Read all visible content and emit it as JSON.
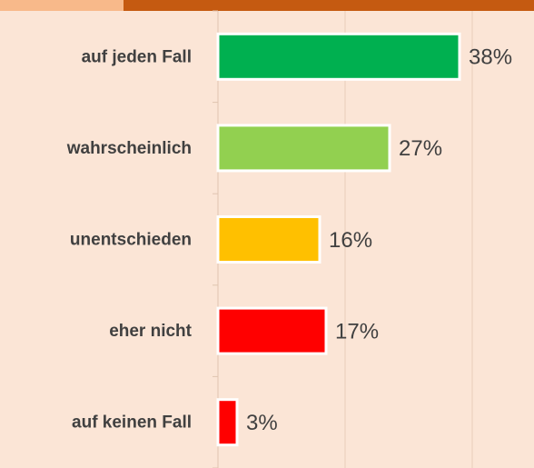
{
  "chart_data": {
    "type": "barh",
    "categories": [
      "auf jeden Fall",
      "wahrscheinlich",
      "unentschieden",
      "eher nicht",
      "auf keinen Fall"
    ],
    "values": [
      38,
      27,
      16,
      17,
      3
    ],
    "value_labels": [
      "38%",
      "27%",
      "16%",
      "17%",
      "3%"
    ],
    "colors": [
      "#00b050",
      "#92d050",
      "#ffc000",
      "#ff0000",
      "#ff0000"
    ],
    "xlim": [
      0,
      50
    ],
    "xticks": [
      0,
      20,
      40
    ],
    "grid": true
  }
}
